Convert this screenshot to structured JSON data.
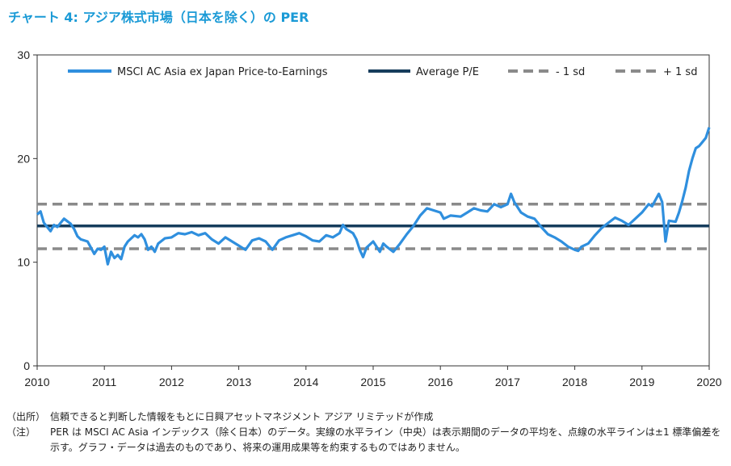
{
  "title": "チャート 4: アジア株式市場（日本を除く）の PER",
  "chart_data": {
    "type": "line",
    "title": "チャート 4: アジア株式市場（日本を除く）の PER",
    "xlabel": "",
    "ylabel": "",
    "ylim": [
      0,
      30
    ],
    "xlim": [
      2010,
      2020
    ],
    "y_ticks": [
      "0",
      "10",
      "20",
      "30"
    ],
    "x_ticks": [
      "2010",
      "2011",
      "2012",
      "2013",
      "2014",
      "2015",
      "2016",
      "2017",
      "2018",
      "2019",
      "2020"
    ],
    "grid": false,
    "legend_position": "top",
    "series": [
      {
        "name": "MSCI AC Asia ex Japan Price-to-Earnings",
        "color": "#2f8fde",
        "style": "solid",
        "x": [
          2010.0,
          2010.05,
          2010.1,
          2010.2,
          2010.25,
          2010.3,
          2010.4,
          2010.5,
          2010.55,
          2010.6,
          2010.65,
          2010.75,
          2010.8,
          2010.85,
          2010.9,
          2010.95,
          2011.0,
          2011.05,
          2011.1,
          2011.15,
          2011.2,
          2011.25,
          2011.3,
          2011.35,
          2011.45,
          2011.5,
          2011.55,
          2011.6,
          2011.65,
          2011.7,
          2011.75,
          2011.8,
          2011.9,
          2012.0,
          2012.1,
          2012.2,
          2012.3,
          2012.4,
          2012.5,
          2012.6,
          2012.7,
          2012.8,
          2012.9,
          2013.0,
          2013.1,
          2013.2,
          2013.3,
          2013.4,
          2013.5,
          2013.6,
          2013.7,
          2013.8,
          2013.9,
          2014.0,
          2014.1,
          2014.2,
          2014.3,
          2014.4,
          2014.5,
          2014.55,
          2014.6,
          2014.7,
          2014.75,
          2014.8,
          2014.85,
          2014.9,
          2015.0,
          2015.1,
          2015.15,
          2015.2,
          2015.3,
          2015.4,
          2015.5,
          2015.6,
          2015.7,
          2015.8,
          2015.9,
          2016.0,
          2016.05,
          2016.15,
          2016.3,
          2016.4,
          2016.5,
          2016.6,
          2016.7,
          2016.8,
          2016.9,
          2017.0,
          2017.05,
          2017.1,
          2017.2,
          2017.3,
          2017.4,
          2017.5,
          2017.6,
          2017.7,
          2017.8,
          2017.9,
          2018.0,
          2018.05,
          2018.1,
          2018.2,
          2018.3,
          2018.4,
          2018.5,
          2018.6,
          2018.7,
          2018.8,
          2018.9,
          2019.0,
          2019.1,
          2019.15,
          2019.2,
          2019.25,
          2019.3,
          2019.35,
          2019.4,
          2019.5,
          2019.55,
          2019.6,
          2019.65,
          2019.7,
          2019.75,
          2019.8,
          2019.85,
          2019.9,
          2019.95,
          2020.0
        ],
        "y": [
          14.6,
          14.9,
          13.8,
          13.0,
          13.6,
          13.4,
          14.2,
          13.7,
          13.2,
          12.5,
          12.2,
          12.0,
          11.4,
          10.8,
          11.3,
          11.2,
          11.5,
          9.8,
          11.0,
          10.4,
          10.7,
          10.3,
          11.5,
          12.0,
          12.6,
          12.4,
          12.7,
          12.2,
          11.2,
          11.5,
          11.0,
          11.8,
          12.3,
          12.4,
          12.8,
          12.7,
          12.9,
          12.6,
          12.8,
          12.2,
          11.8,
          12.4,
          12.0,
          11.6,
          11.2,
          12.1,
          12.3,
          12.0,
          11.2,
          12.1,
          12.4,
          12.6,
          12.8,
          12.5,
          12.1,
          12.0,
          12.6,
          12.4,
          12.8,
          13.6,
          13.2,
          12.8,
          12.2,
          11.2,
          10.5,
          11.4,
          12.0,
          11.0,
          11.8,
          11.5,
          11.0,
          11.8,
          12.7,
          13.5,
          14.5,
          15.2,
          15.0,
          14.8,
          14.2,
          14.5,
          14.4,
          14.8,
          15.2,
          15.0,
          14.9,
          15.6,
          15.3,
          15.6,
          16.6,
          15.8,
          14.8,
          14.4,
          14.2,
          13.4,
          12.7,
          12.4,
          12.0,
          11.5,
          11.2,
          11.1,
          11.5,
          11.8,
          12.6,
          13.3,
          13.8,
          14.3,
          14.0,
          13.6,
          14.2,
          14.8,
          15.6,
          15.4,
          16.0,
          16.6,
          15.8,
          12.0,
          14.0,
          13.9,
          14.8,
          15.9,
          17.2,
          18.8,
          20.0,
          21.0,
          21.2,
          21.6,
          22.0,
          23.0
        ]
      },
      {
        "name": "Average P/E",
        "color": "#163d5c",
        "style": "solid",
        "x": [
          2010,
          2020
        ],
        "y": [
          13.5,
          13.5
        ]
      },
      {
        "name": "- 1 sd",
        "color": "#8a8a8a",
        "style": "dashed",
        "x": [
          2010,
          2020
        ],
        "y": [
          11.3,
          11.3
        ]
      },
      {
        "name": "+ 1 sd",
        "color": "#8a8a8a",
        "style": "dashed",
        "x": [
          2010,
          2020
        ],
        "y": [
          15.6,
          15.6
        ]
      }
    ]
  },
  "notes": [
    {
      "label": "（出所）",
      "text": "信頼できると判断した情報をもとに日興アセットマネジメント アジア リミテッドが作成"
    },
    {
      "label": "（注）",
      "text": "PER は MSCI AC Asia インデックス（除く日本）のデータ。実線の水平ライン（中央）は表示期間のデータの平均を、点線の水平ラインは±1 標準偏差を示す。グラフ・データは過去のものであり、将来の運用成果等を約束するものではありません。"
    }
  ]
}
